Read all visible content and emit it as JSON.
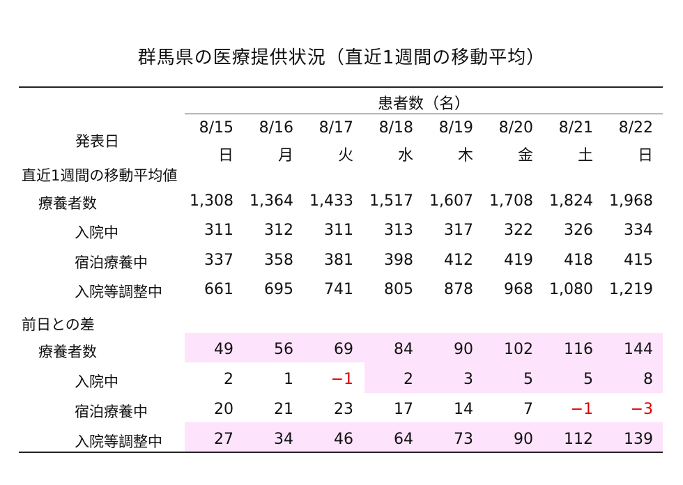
{
  "title": "群馬県の医療提供状況（直近1週間の移動平均）",
  "header": {
    "patients_label": "患者数（名）",
    "publish_date_label": "発表日",
    "dates": [
      "8/15",
      "8/16",
      "8/17",
      "8/18",
      "8/19",
      "8/20",
      "8/21",
      "8/22"
    ],
    "weekdays": [
      "日",
      "月",
      "火",
      "水",
      "木",
      "金",
      "土",
      "日"
    ]
  },
  "section_avg": {
    "label": "直近1週間の移動平均値",
    "rows": [
      {
        "label": "療養者数",
        "values": [
          "1,308",
          "1,364",
          "1,433",
          "1,517",
          "1,607",
          "1,708",
          "1,824",
          "1,968"
        ]
      },
      {
        "label": "入院中",
        "values": [
          "311",
          "312",
          "311",
          "313",
          "317",
          "322",
          "326",
          "334"
        ]
      },
      {
        "label": "宿泊療養中",
        "values": [
          "337",
          "358",
          "381",
          "398",
          "412",
          "419",
          "418",
          "415"
        ]
      },
      {
        "label": "入院等調整中",
        "values": [
          "661",
          "695",
          "741",
          "805",
          "878",
          "968",
          "1,080",
          "1,219"
        ]
      }
    ]
  },
  "section_diff": {
    "label": "前日との差",
    "rows": [
      {
        "label": "療養者数",
        "values": [
          "49",
          "56",
          "69",
          "84",
          "90",
          "102",
          "116",
          "144"
        ]
      },
      {
        "label": "入院中",
        "values": [
          "2",
          "1",
          "−1",
          "2",
          "3",
          "5",
          "5",
          "8"
        ]
      },
      {
        "label": "宿泊療養中",
        "values": [
          "20",
          "21",
          "23",
          "17",
          "14",
          "7",
          "−1",
          "−3"
        ]
      },
      {
        "label": "入院等調整中",
        "values": [
          "27",
          "34",
          "46",
          "64",
          "73",
          "90",
          "112",
          "139"
        ]
      }
    ]
  },
  "colors": {
    "highlight": "#fde3fb",
    "negative": "#e00000"
  }
}
